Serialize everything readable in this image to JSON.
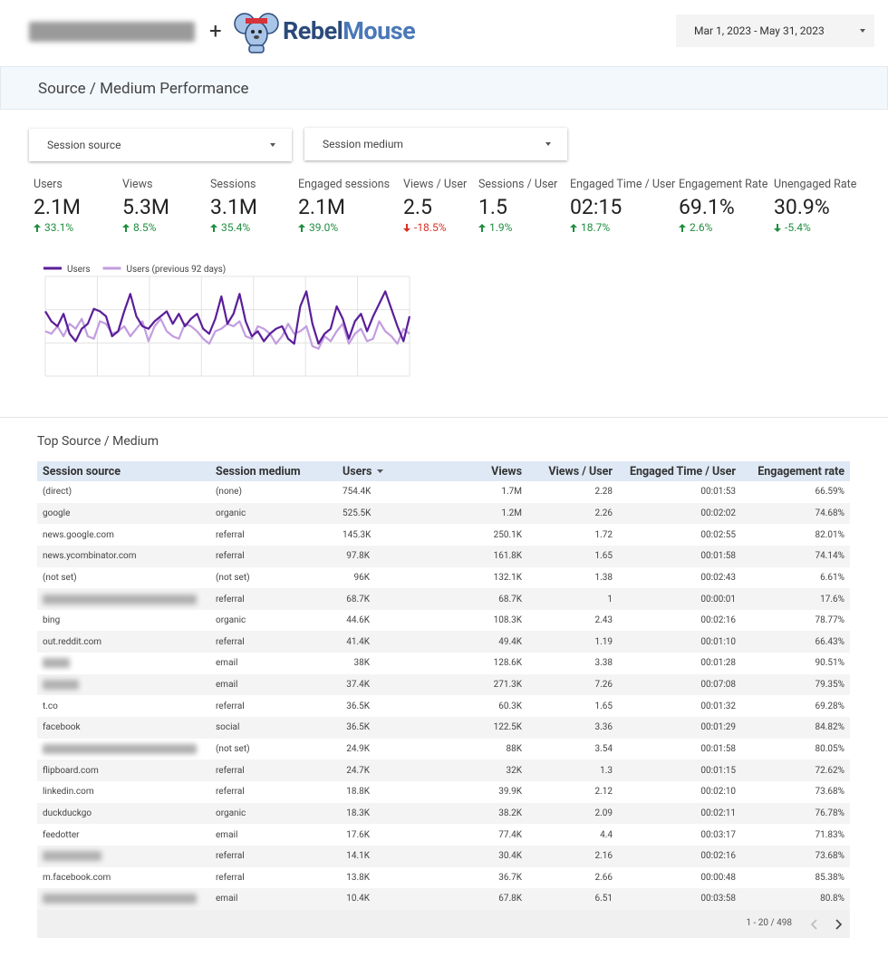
{
  "header": {
    "brand_first": "Rebel",
    "brand_second": "Mouse",
    "plus": "+",
    "date_range": "Mar 1, 2023 - May 31, 2023"
  },
  "section_title": "Source / Medium Performance",
  "filters": [
    "Session source",
    "Session medium"
  ],
  "scorecards": [
    {
      "label": "Users",
      "value": "2.1M",
      "delta": "33.1%",
      "direction": "up",
      "color": "#1e8e3e"
    },
    {
      "label": "Views",
      "value": "5.3M",
      "delta": "8.5%",
      "direction": "up",
      "color": "#1e8e3e"
    },
    {
      "label": "Sessions",
      "value": "3.1M",
      "delta": "35.4%",
      "direction": "up",
      "color": "#1e8e3e"
    },
    {
      "label": "Engaged sessions",
      "value": "2.1M",
      "delta": "39.0%",
      "direction": "up",
      "color": "#1e8e3e"
    },
    {
      "label": "Views / User",
      "value": "2.5",
      "delta": "-18.5%",
      "direction": "down",
      "color": "#d93025"
    },
    {
      "label": "Sessions / User",
      "value": "1.5",
      "delta": "1.9%",
      "direction": "up",
      "color": "#1e8e3e"
    },
    {
      "label": "Engaged Time / User",
      "value": "02:15",
      "delta": "18.7%",
      "direction": "up",
      "color": "#1e8e3e"
    },
    {
      "label": "Engagement Rate",
      "value": "69.1%",
      "delta": "2.6%",
      "direction": "up",
      "color": "#1e8e3e"
    },
    {
      "label": "Unengaged Rate",
      "value": "30.9%",
      "delta": "-5.4%",
      "direction": "down",
      "color": "#1e8e3e"
    }
  ],
  "chart_data": {
    "type": "line",
    "ylim": [
      0,
      40000
    ],
    "grid": true,
    "series": [
      {
        "name": "Users",
        "color": "#5b1e99",
        "values": [
          26000,
          22000,
          20000,
          25000,
          17000,
          14000,
          19000,
          21000,
          27000,
          26000,
          24000,
          16000,
          18000,
          26000,
          33000,
          24000,
          20000,
          19000,
          22000,
          24000,
          26000,
          21000,
          25000,
          20000,
          23000,
          25000,
          19000,
          17000,
          23000,
          32000,
          21000,
          25000,
          33000,
          22000,
          16000,
          18000,
          14000,
          17000,
          19000,
          20000,
          15000,
          13000,
          28000,
          34000,
          21000,
          13000,
          17000,
          19000,
          28000,
          23000,
          15000,
          22000,
          25000,
          18000,
          24000,
          29000,
          34000,
          27000,
          20000,
          14000,
          24000
        ]
      },
      {
        "name": "Users (previous 92 days)",
        "color": "#c29ddf",
        "values": [
          18000,
          17000,
          20000,
          16000,
          21000,
          19000,
          23000,
          16000,
          15000,
          22000,
          21000,
          17000,
          18000,
          20000,
          16000,
          19000,
          22000,
          14000,
          20000,
          23000,
          18000,
          16000,
          15000,
          21000,
          20000,
          18000,
          15000,
          13000,
          18000,
          19000,
          21000,
          20000,
          22000,
          16000,
          15000,
          20000,
          19000,
          17000,
          13000,
          16000,
          21000,
          17000,
          18000,
          20000,
          12000,
          11000,
          16000,
          14000,
          18000,
          21000,
          13000,
          17000,
          19000,
          14000,
          15000,
          22000,
          18000,
          16000,
          13000,
          19000,
          17000
        ]
      }
    ]
  },
  "table": {
    "title": "Top Source / Medium",
    "columns": [
      "Session source",
      "Session medium",
      "Users",
      "Views",
      "Views / User",
      "Engaged Time / User",
      "Engagement rate"
    ],
    "rows": [
      [
        "(direct)",
        "(none)",
        "754.4K",
        "1.7M",
        "2.28",
        "00:01:53",
        "66.59%"
      ],
      [
        "google",
        "organic",
        "525.5K",
        "1.2M",
        "2.26",
        "00:02:02",
        "74.68%"
      ],
      [
        "news.google.com",
        "referral",
        "145.3K",
        "250.1K",
        "1.72",
        "00:02:55",
        "82.01%"
      ],
      [
        "news.ycombinator.com",
        "referral",
        "97.8K",
        "161.8K",
        "1.65",
        "00:01:58",
        "74.14%"
      ],
      [
        "(not set)",
        "(not set)",
        "96K",
        "132.1K",
        "1.38",
        "00:02:43",
        "6.61%"
      ],
      [
        null,
        "referral",
        "68.7K",
        "68.7K",
        "1",
        "00:00:01",
        "17.6%"
      ],
      [
        "bing",
        "organic",
        "44.6K",
        "108.3K",
        "2.43",
        "00:02:16",
        "78.77%"
      ],
      [
        "out.reddit.com",
        "referral",
        "41.4K",
        "49.4K",
        "1.19",
        "00:01:10",
        "66.43%"
      ],
      [
        null,
        "email",
        "38K",
        "128.6K",
        "3.38",
        "00:01:28",
        "90.51%"
      ],
      [
        null,
        "email",
        "37.4K",
        "271.3K",
        "7.26",
        "00:07:08",
        "79.35%"
      ],
      [
        "t.co",
        "referral",
        "36.5K",
        "60.3K",
        "1.65",
        "00:01:32",
        "69.28%"
      ],
      [
        "facebook",
        "social",
        "36.5K",
        "122.5K",
        "3.36",
        "00:01:29",
        "84.82%"
      ],
      [
        null,
        "(not set)",
        "24.9K",
        "88K",
        "3.54",
        "00:01:58",
        "80.05%"
      ],
      [
        "flipboard.com",
        "referral",
        "24.7K",
        "32K",
        "1.3",
        "00:01:15",
        "72.62%"
      ],
      [
        "linkedin.com",
        "referral",
        "18.8K",
        "39.9K",
        "2.12",
        "00:02:10",
        "73.68%"
      ],
      [
        "duckduckgo",
        "organic",
        "18.3K",
        "38.2K",
        "2.09",
        "00:02:11",
        "76.78%"
      ],
      [
        "feedotter",
        "email",
        "17.6K",
        "77.4K",
        "4.4",
        "00:03:17",
        "71.83%"
      ],
      [
        null,
        "referral",
        "14.1K",
        "30.4K",
        "2.16",
        "00:02:16",
        "73.68%"
      ],
      [
        "m.facebook.com",
        "referral",
        "13.8K",
        "36.7K",
        "2.66",
        "00:00:48",
        "85.38%"
      ],
      [
        null,
        "email",
        "10.4K",
        "67.8K",
        "6.51",
        "00:03:58",
        "80.8%"
      ]
    ],
    "pagination": "1 - 20 / 498"
  }
}
